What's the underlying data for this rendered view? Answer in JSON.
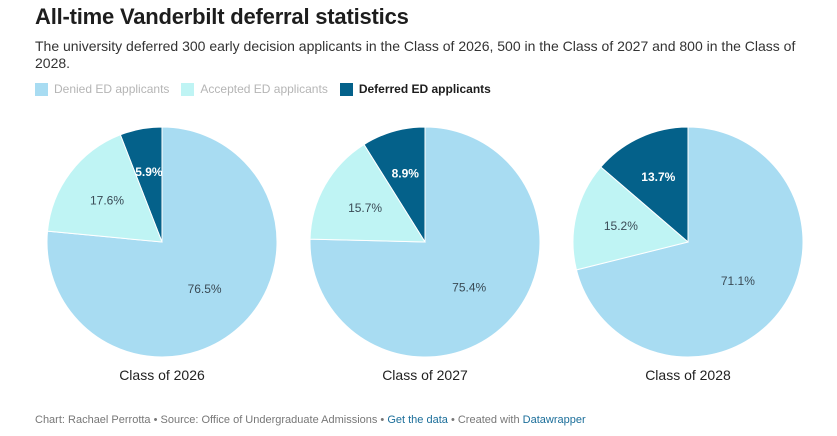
{
  "title": "All-time Vanderbilt deferral statistics",
  "subtitle": "The university deferred 300 early decision applicants in the Class of 2026, 500 in the Class of 2027 and 800 in the Class of 2028.",
  "colors": {
    "denied": "#a8dcf2",
    "accepted": "#bff4f4",
    "deferred": "#04618a",
    "label_dark": "#3a4a55",
    "label_light": "#ffffff"
  },
  "legend": [
    {
      "label": "Denied ED applicants",
      "color": "#a8dcf2",
      "style": "dim"
    },
    {
      "label": "Accepted ED applicants",
      "color": "#bff4f4",
      "style": "dim"
    },
    {
      "label": "Deferred ED applicants",
      "color": "#04618a",
      "style": "strong"
    }
  ],
  "chart_data": [
    {
      "type": "pie",
      "title": "Class of 2026",
      "slices": [
        {
          "name": "Deferred ED applicants",
          "value": 5.9,
          "label": "5.9%"
        },
        {
          "name": "Denied ED applicants",
          "value": 76.5,
          "label": "76.5%"
        },
        {
          "name": "Accepted ED applicants",
          "value": 17.6,
          "label": "17.6%"
        }
      ]
    },
    {
      "type": "pie",
      "title": "Class of 2027",
      "slices": [
        {
          "name": "Deferred ED applicants",
          "value": 8.9,
          "label": "8.9%"
        },
        {
          "name": "Denied ED applicants",
          "value": 75.4,
          "label": "75.4%"
        },
        {
          "name": "Accepted ED applicants",
          "value": 15.7,
          "label": "15.7%"
        }
      ]
    },
    {
      "type": "pie",
      "title": "Class of 2028",
      "slices": [
        {
          "name": "Deferred ED applicants",
          "value": 13.7,
          "label": "13.7%"
        },
        {
          "name": "Denied ED applicants",
          "value": 71.1,
          "label": "71.1%"
        },
        {
          "name": "Accepted ED applicants",
          "value": 15.2,
          "label": "15.2%"
        }
      ]
    }
  ],
  "footer": {
    "credit": "Chart: Rachael Perrotta • Source: Office of Undergraduate Admissions • ",
    "get_data": "Get the data",
    "created_with": " • Created with ",
    "tool": "Datawrapper"
  }
}
